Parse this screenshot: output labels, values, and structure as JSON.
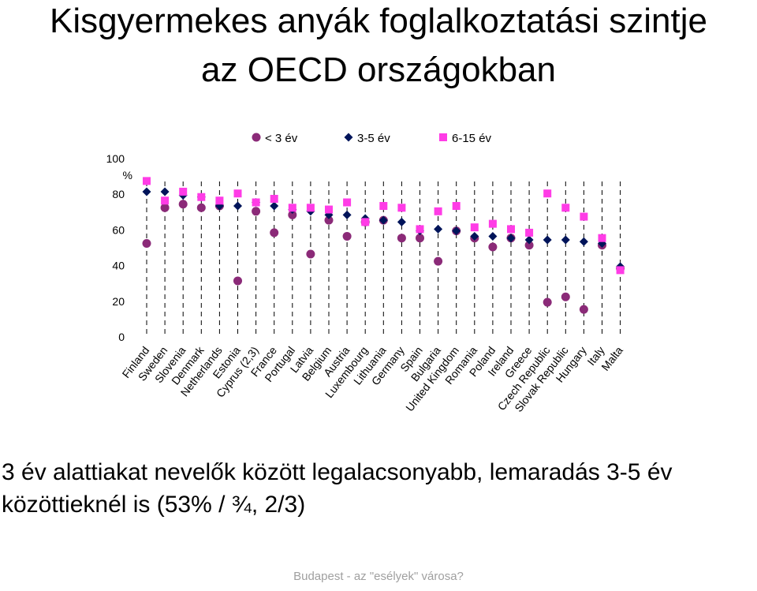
{
  "title_line1": "Kisgyermekes anyák foglalkoztatási szintje",
  "title_line2": "az OECD országokban",
  "caption": "3 év alattiakat nevelők között legalacsonyabb, lemaradás 3-5 év közöttieknél is (53% / ¾, 2/3)",
  "footer": "Budapest - az \"esélyek\" városa?",
  "chart_data": {
    "type": "scatter",
    "ylabel": "%",
    "ylim": [
      0,
      100
    ],
    "yticks": [
      0,
      20,
      40,
      60,
      80,
      100
    ],
    "legend_position": "top",
    "grid": "vertical dashed drop lines",
    "categories": [
      "Finland",
      "Sweden",
      "Slovenia",
      "Denmark",
      "Netherlands",
      "Estonia",
      "Cyprus (2,3)",
      "France",
      "Portugal",
      "Latvia",
      "Belgium",
      "Austria",
      "Luxembourg",
      "Lithuania",
      "Germany",
      "Spain",
      "Bulgaria",
      "United Kingdom",
      "Romania",
      "Poland",
      "Ireland",
      "Greece",
      "Czech Republic",
      "Slovak Republic",
      "Hungary",
      "Italy",
      "Malta"
    ],
    "series": [
      {
        "name": "< 3 év",
        "marker": "circle",
        "color": "#8b2a78",
        "values": [
          52,
          72,
          74,
          72,
          73,
          31,
          70,
          58,
          68,
          46,
          65,
          56,
          64,
          65,
          55,
          55,
          42,
          59,
          55,
          50,
          55,
          51,
          19,
          22,
          15,
          51,
          38
        ]
      },
      {
        "name": "3-5 év",
        "marker": "diamond",
        "color": "#00145a",
        "values": [
          81,
          81,
          79,
          78,
          73,
          73,
          75,
          73,
          71,
          70,
          68,
          68,
          66,
          65,
          64,
          59,
          60,
          59,
          56,
          56,
          55,
          54,
          54,
          54,
          53,
          52,
          39
        ]
      },
      {
        "name": "6-15 év",
        "marker": "square",
        "color": "#ff3ce6",
        "values": [
          87,
          76,
          81,
          78,
          76,
          80,
          75,
          77,
          72,
          72,
          71,
          75,
          64,
          73,
          72,
          60,
          70,
          73,
          61,
          63,
          60,
          58,
          80,
          72,
          67,
          55,
          37
        ]
      }
    ]
  }
}
